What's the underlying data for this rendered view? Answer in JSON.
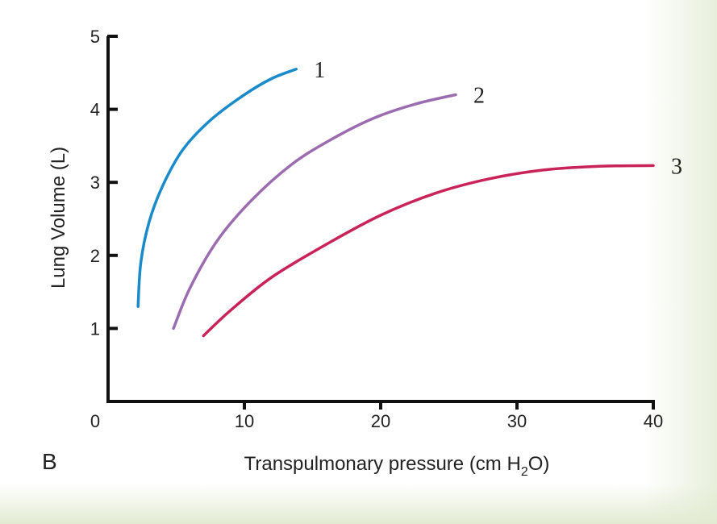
{
  "chart_data": {
    "type": "line",
    "panel_label": "B",
    "title": "",
    "xlabel_main": "Transpulmonary pressure (cm H",
    "xlabel_sub": "2",
    "xlabel_end": "O)",
    "ylabel": "Lung Volume (L)",
    "xlim": [
      0,
      40
    ],
    "ylim": [
      0,
      5
    ],
    "x_ticks": [
      "0",
      "10",
      "20",
      "30",
      "40"
    ],
    "y_ticks": [
      "1",
      "2",
      "3",
      "4",
      "5"
    ],
    "grid": false,
    "series": [
      {
        "name": "1",
        "color": "#1a8bc8",
        "x": [
          2.2,
          2.4,
          3.0,
          4.0,
          5.5,
          7.5,
          10.0,
          12.0,
          13.8
        ],
        "y": [
          1.3,
          1.9,
          2.45,
          2.95,
          3.45,
          3.85,
          4.2,
          4.42,
          4.55
        ]
      },
      {
        "name": "2",
        "color": "#9b6db0",
        "x": [
          4.8,
          6.0,
          8.0,
          10.5,
          13.5,
          16.5,
          19.5,
          22.5,
          25.5
        ],
        "y": [
          1.0,
          1.55,
          2.2,
          2.75,
          3.25,
          3.6,
          3.88,
          4.07,
          4.2
        ]
      },
      {
        "name": "3",
        "color": "#c8245a",
        "x": [
          7.0,
          9.0,
          12.0,
          16.0,
          20.0,
          24.0,
          28.0,
          32.0,
          36.0,
          40.0
        ],
        "y": [
          0.9,
          1.25,
          1.7,
          2.15,
          2.55,
          2.85,
          3.05,
          3.17,
          3.22,
          3.23
        ]
      }
    ]
  }
}
